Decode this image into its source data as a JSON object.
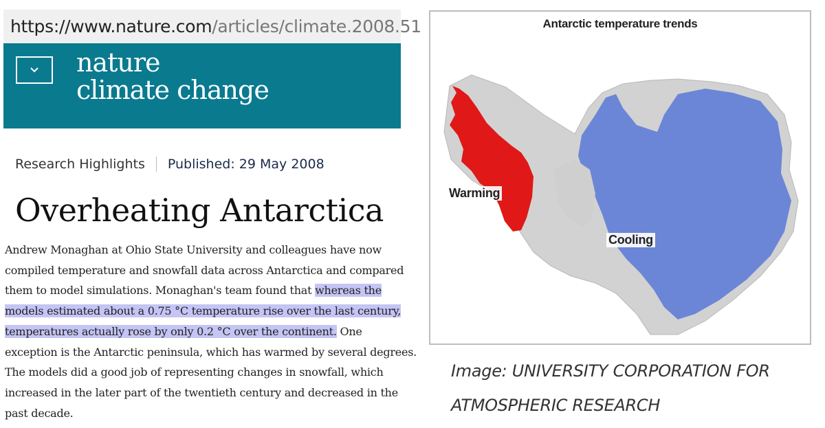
{
  "browser": {
    "url_host": "https://www.nature.com",
    "url_path": "/articles/climate.2008.51"
  },
  "header": {
    "menu_icon": "chevron-down-icon",
    "logo_line1": "nature",
    "logo_line2": "climate change",
    "background_color": "#0a7a8f"
  },
  "article": {
    "type": "Research Highlights",
    "published_label": "Published: ",
    "published_date": "29 May 2008",
    "title": "Overheating Antarctica",
    "body_part1": "Andrew Monaghan at Ohio State University and colleagues have now compiled temperature and snowfall data across Antarctica and compared them to model simulations. Monaghan's team found that ",
    "body_highlight": "whereas the models estimated about a 0.75 °C temperature rise over the last century, temperatures actually rose by only 0.2 °C over the continent.",
    "body_part2": " One exception is the Antarctic peninsula, which has warmed by several degrees. The models did a good job of representing changes in snowfall, which increased in the later part of the twentieth century and decreased in the past decade.",
    "highlight_color": "#c4c4f5"
  },
  "figure": {
    "title": "Antarctic temperature trends",
    "label_warming": "Warming",
    "label_cooling": "Cooling",
    "warming_color": "#e01818",
    "cooling_color": "#6b86d6"
  },
  "caption": {
    "text": "Image: UNIVERSITY CORPORATION FOR ATMOSPHERIC RESEARCH"
  }
}
